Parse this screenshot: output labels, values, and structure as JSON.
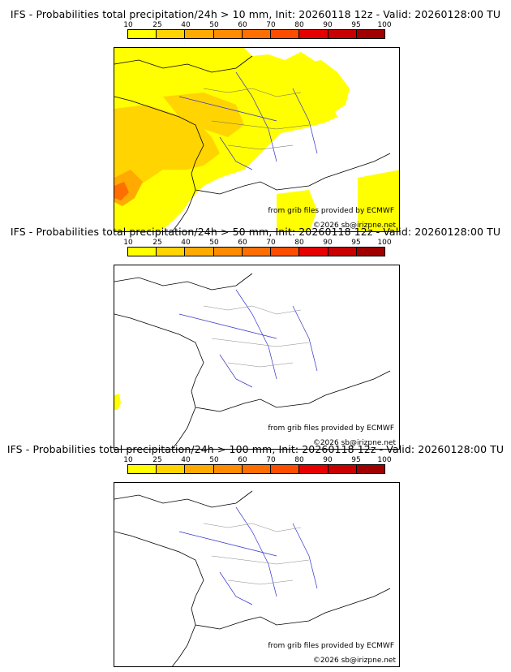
{
  "colorbar": {
    "ticks": [
      "10",
      "25",
      "40",
      "50",
      "60",
      "70",
      "80",
      "90",
      "95",
      "100"
    ],
    "colors": [
      "#ffff00",
      "#ffd400",
      "#ffaa00",
      "#ff8c00",
      "#ff6e00",
      "#ff4d00",
      "#e60000",
      "#c80000",
      "#a00000",
      "#780000",
      "#500000"
    ]
  },
  "panels": [
    {
      "title": "IFS - Probabilities total precipitation/24h > 10 mm, Init: 20260118 12z - Valid: 20260128:00 TU",
      "credit_source": "from grib files provided by ECMWF",
      "credit_copyright": "©2026 sb@irizpne.net"
    },
    {
      "title": "IFS - Probabilities total precipitation/24h > 50 mm, Init: 20260118 12z - Valid: 20260128:00 TU",
      "credit_source": "from grib files provided by ECMWF",
      "credit_copyright": "©2026 sb@irizpne.net"
    },
    {
      "title": "IFS - Probabilities total precipitation/24h > 100 mm, Init: 20260118 12z - Valid: 20260128:00 TU",
      "credit_source": "from grib files provided by ECMWF",
      "credit_copyright": "©2026 sb@irizpne.net"
    }
  ]
}
